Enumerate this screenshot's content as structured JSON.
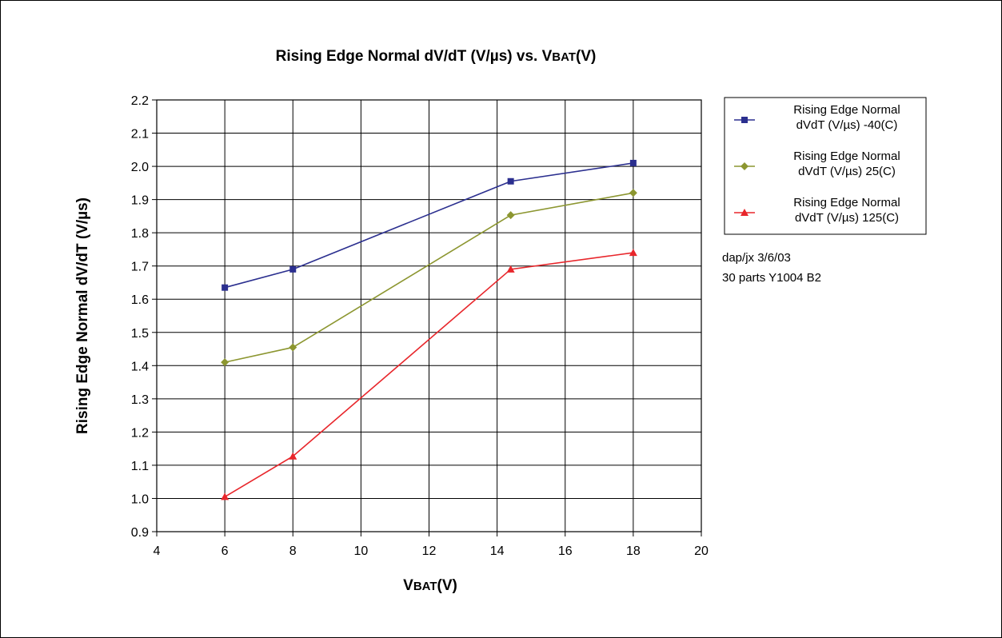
{
  "chart_data": {
    "type": "line",
    "title": "Rising Edge Normal dV/dT (V/µs) vs. VBAT(V)",
    "xlabel": "VBAT(V)",
    "ylabel": "Rising Edge Normal dV/dT (V/µs)",
    "xlim": [
      4,
      20
    ],
    "ylim": [
      0.9,
      2.2
    ],
    "xticks": [
      "4",
      "6",
      "8",
      "10",
      "12",
      "14",
      "16",
      "18",
      "20"
    ],
    "yticks": [
      "0.9",
      "1.0",
      "1.1",
      "1.2",
      "1.3",
      "1.4",
      "1.5",
      "1.6",
      "1.7",
      "1.8",
      "1.9",
      "2.0",
      "2.1",
      "2.2"
    ],
    "grid": true,
    "legend_position": "right",
    "series": [
      {
        "name": "Rising Edge Normal dVdT (V/µs) -40(C)",
        "legend_lines": [
          "Rising Edge Normal",
          "dVdT (V/µs) -40(C)"
        ],
        "color": "#2b2f8f",
        "marker": "square",
        "x": [
          6,
          8,
          14.4,
          18
        ],
        "values": [
          1.635,
          1.69,
          1.955,
          2.01
        ]
      },
      {
        "name": "Rising Edge Normal dVdT (V/µs) 25(C)",
        "legend_lines": [
          "Rising Edge Normal",
          "dVdT (V/µs) 25(C)"
        ],
        "color": "#8c9630",
        "marker": "diamond",
        "x": [
          6,
          8,
          14.4,
          18
        ],
        "values": [
          1.41,
          1.455,
          1.853,
          1.92
        ]
      },
      {
        "name": "Rising Edge Normal dVdT (V/µs) 125(C)",
        "legend_lines": [
          "Rising Edge Normal",
          "dVdT (V/µs) 125(C)"
        ],
        "color": "#e8262b",
        "marker": "triangle",
        "x": [
          6,
          8,
          14.4,
          18
        ],
        "values": [
          1.005,
          1.127,
          1.69,
          1.74
        ]
      }
    ],
    "annotations": [
      "dap/jx 3/6/03",
      "30 parts Y1004 B2"
    ]
  }
}
